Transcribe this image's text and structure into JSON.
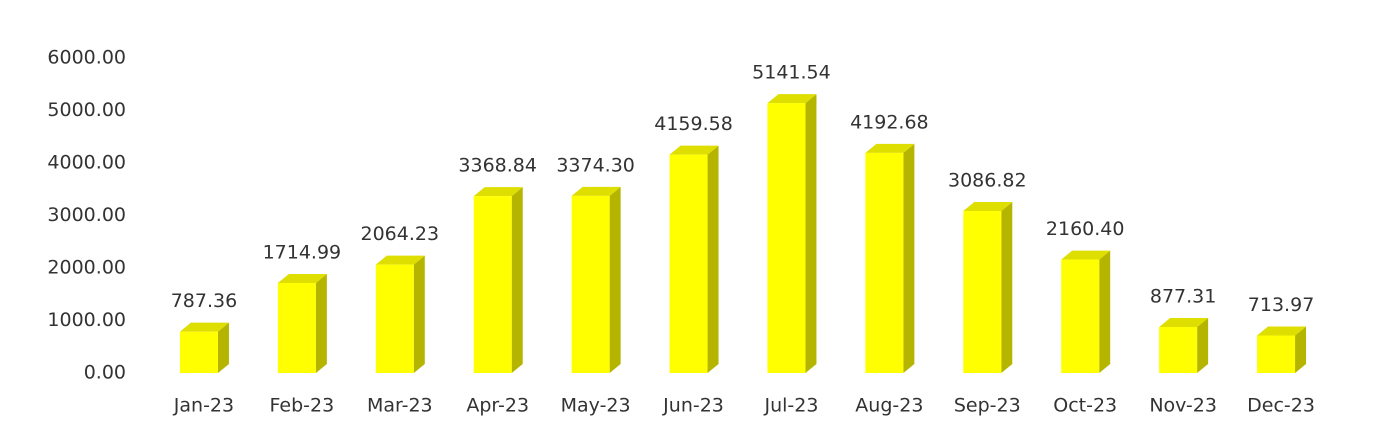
{
  "chart_data": {
    "type": "bar3d",
    "categories": [
      "Jan-23",
      "Feb-23",
      "Mar-23",
      "Apr-23",
      "May-23",
      "Jun-23",
      "Jul-23",
      "Aug-23",
      "Sep-23",
      "Oct-23",
      "Nov-23",
      "Dec-23"
    ],
    "values": [
      787.36,
      1714.99,
      2064.23,
      3368.84,
      3374.3,
      4159.58,
      5141.54,
      4192.68,
      3086.82,
      2160.4,
      877.31,
      713.97
    ],
    "value_labels": [
      "787.36",
      "1714.99",
      "2064.23",
      "3368.84",
      "3374.30",
      "4159.58",
      "5141.54",
      "4192.68",
      "3086.82",
      "2160.40",
      "877.31",
      "713.97"
    ],
    "color": "#ffff00",
    "ylim": [
      0,
      6000
    ],
    "yticks": [
      {
        "value": 0,
        "label": "0.00"
      },
      {
        "value": 1000,
        "label": "1000.00"
      },
      {
        "value": 2000,
        "label": "2000.00"
      },
      {
        "value": 3000,
        "label": "3000.00"
      },
      {
        "value": 4000,
        "label": "4000.00"
      },
      {
        "value": 5000,
        "label": "5000.00"
      },
      {
        "value": 6000,
        "label": "6000.00"
      }
    ],
    "grid": false
  }
}
